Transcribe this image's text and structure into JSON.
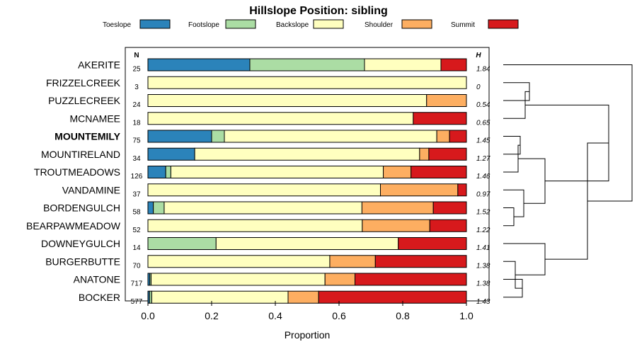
{
  "chart_data": {
    "type": "bar",
    "orientation": "horizontal",
    "stacked": true,
    "title": "Hillslope Position: sibling",
    "xlabel": "Proportion",
    "ylabel": "",
    "xlim": [
      0,
      1
    ],
    "xticks": [
      "0.0",
      "0.2",
      "0.4",
      "0.6",
      "0.8",
      "1.0"
    ],
    "n_header": "N",
    "h_header": "H",
    "legend_position": "top",
    "highlight_category": "MOUNTEMILY",
    "series": [
      {
        "name": "Toeslope",
        "color": "#2b83ba"
      },
      {
        "name": "Footslope",
        "color": "#abdda4"
      },
      {
        "name": "Backslope",
        "color": "#ffffbf"
      },
      {
        "name": "Shoulder",
        "color": "#fdae61"
      },
      {
        "name": "Summit",
        "color": "#d7191c"
      }
    ],
    "rows": [
      {
        "label": "AKERITE",
        "n": "25",
        "h": "1.84",
        "values": [
          0.32,
          0.36,
          0.24,
          0.0,
          0.08
        ]
      },
      {
        "label": "FRIZZELCREEK",
        "n": "3",
        "h": "0",
        "values": [
          0.0,
          0.0,
          1.0,
          0.0,
          0.0
        ]
      },
      {
        "label": "PUZZLECREEK",
        "n": "24",
        "h": "0.54",
        "values": [
          0.0,
          0.0,
          0.875,
          0.125,
          0.0
        ]
      },
      {
        "label": "MCNAMEE",
        "n": "18",
        "h": "0.65",
        "values": [
          0.0,
          0.0,
          0.833,
          0.0,
          0.167
        ]
      },
      {
        "label": "MOUNTEMILY",
        "n": "75",
        "h": "1.45",
        "values": [
          0.2,
          0.04,
          0.667,
          0.04,
          0.053
        ]
      },
      {
        "label": "MOUNTIRELAND",
        "n": "34",
        "h": "1.27",
        "values": [
          0.147,
          0.0,
          0.706,
          0.029,
          0.118
        ]
      },
      {
        "label": "TROUTMEADOWS",
        "n": "126",
        "h": "1.46",
        "values": [
          0.056,
          0.016,
          0.667,
          0.087,
          0.174
        ]
      },
      {
        "label": "VANDAMINE",
        "n": "37",
        "h": "0.97",
        "values": [
          0.0,
          0.0,
          0.73,
          0.243,
          0.027
        ]
      },
      {
        "label": "BORDENGULCH",
        "n": "58",
        "h": "1.52",
        "values": [
          0.017,
          0.034,
          0.621,
          0.224,
          0.104
        ]
      },
      {
        "label": "BEARPAWMEADOW",
        "n": "52",
        "h": "1.22",
        "values": [
          0.0,
          0.0,
          0.673,
          0.212,
          0.115
        ]
      },
      {
        "label": "DOWNEYGULCH",
        "n": "14",
        "h": "1.41",
        "values": [
          0.0,
          0.214,
          0.572,
          0.0,
          0.214
        ]
      },
      {
        "label": "BURGERBUTTE",
        "n": "70",
        "h": "1.38",
        "values": [
          0.0,
          0.0,
          0.571,
          0.143,
          0.286
        ]
      },
      {
        "label": "ANATONE",
        "n": "717",
        "h": "1.38",
        "values": [
          0.006,
          0.004,
          0.546,
          0.094,
          0.35
        ]
      },
      {
        "label": "BOCKER",
        "n": "577",
        "h": "1.43",
        "values": [
          0.005,
          0.007,
          0.428,
          0.096,
          0.464
        ]
      }
    ]
  }
}
